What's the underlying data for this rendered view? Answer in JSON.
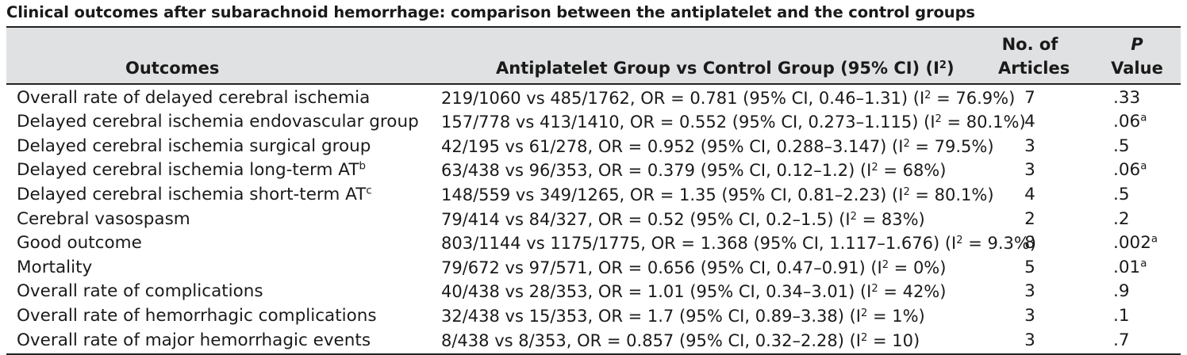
{
  "caption": "Clinical outcomes after subarachnoid hemorrhage: comparison between the antiplatelet and the control groups",
  "headers": {
    "outcomes": "Outcomes",
    "comparison_main": "Antiplatelet Group vs Control Group (95% CI) (I",
    "comparison_sup": "2",
    "comparison_end": ")",
    "articles_line1": "No. of",
    "articles_line2": "Articles",
    "p_line1": "P",
    "p_line2": "Value"
  },
  "rows": [
    {
      "outcome": "Overall rate of delayed cerebral ischemia",
      "outcome_sup": "",
      "comparison": "219/1060 vs 485/1762, OR = 0.781 (95% CI, 0.46–1.31) (I",
      "comparison_tail": " = 76.9%)",
      "articles": "7",
      "p": ".33",
      "p_sup": ""
    },
    {
      "outcome": "Delayed cerebral ischemia endovascular group",
      "outcome_sup": "",
      "comparison": "157/778 vs 413/1410, OR = 0.552 (95% CI, 0.273–1.115) (I",
      "comparison_tail": " = 80.1%)",
      "articles": "4",
      "p": ".06",
      "p_sup": "a"
    },
    {
      "outcome": "Delayed cerebral ischemia surgical group",
      "outcome_sup": "",
      "comparison": "42/195 vs 61/278, OR = 0.952 (95% CI, 0.288–3.147) (I",
      "comparison_tail": " = 79.5%)",
      "articles": "3",
      "p": ".5",
      "p_sup": ""
    },
    {
      "outcome": "Delayed cerebral ischemia long-term AT",
      "outcome_sup": "b",
      "comparison": "63/438 vs 96/353, OR = 0.379 (95% CI, 0.12–1.2) (I",
      "comparison_tail": " = 68%)",
      "articles": "3",
      "p": ".06",
      "p_sup": "a"
    },
    {
      "outcome": "Delayed cerebral ischemia short-term AT",
      "outcome_sup": "c",
      "comparison": "148/559 vs 349/1265, OR = 1.35 (95% CI, 0.81–2.23) (I",
      "comparison_tail": " = 80.1%)",
      "articles": "4",
      "p": ".5",
      "p_sup": ""
    },
    {
      "outcome": "Cerebral vasospasm",
      "outcome_sup": "",
      "comparison": "79/414 vs 84/327, OR = 0.52 (95% CI, 0.2–1.5) (I",
      "comparison_tail": " = 83%)",
      "articles": "2",
      "p": ".2",
      "p_sup": ""
    },
    {
      "outcome": "Good outcome",
      "outcome_sup": "",
      "comparison": "803/1144 vs 1175/1775, OR = 1.368 (95% CI, 1.117–1.676) (I",
      "comparison_tail": " = 9.3%)",
      "articles": "8",
      "p": ".002",
      "p_sup": "a"
    },
    {
      "outcome": "Mortality",
      "outcome_sup": "",
      "comparison": "79/672 vs 97/571, OR = 0.656 (95% CI, 0.47–0.91) (I",
      "comparison_tail": " = 0%)",
      "articles": "5",
      "p": ".01",
      "p_sup": "a"
    },
    {
      "outcome": "Overall rate of complications",
      "outcome_sup": "",
      "comparison": "40/438 vs 28/353, OR = 1.01 (95% CI, 0.34–3.01) (I",
      "comparison_tail": " = 42%)",
      "articles": "3",
      "p": ".9",
      "p_sup": ""
    },
    {
      "outcome": "Overall rate of hemorrhagic complications",
      "outcome_sup": "",
      "comparison": "32/438 vs 15/353, OR = 1.7 (95% CI, 0.89–3.38) (I",
      "comparison_tail": " = 1%)",
      "articles": "3",
      "p": ".1",
      "p_sup": ""
    },
    {
      "outcome": "Overall rate of major hemorrhagic events",
      "outcome_sup": "",
      "comparison": "8/438 vs 8/353, OR = 0.857 (95% CI, 0.32–2.28) (I",
      "comparison_tail": " = 10)",
      "articles": "3",
      "p": ".7",
      "p_sup": ""
    }
  ],
  "i_squared_sup": "2"
}
